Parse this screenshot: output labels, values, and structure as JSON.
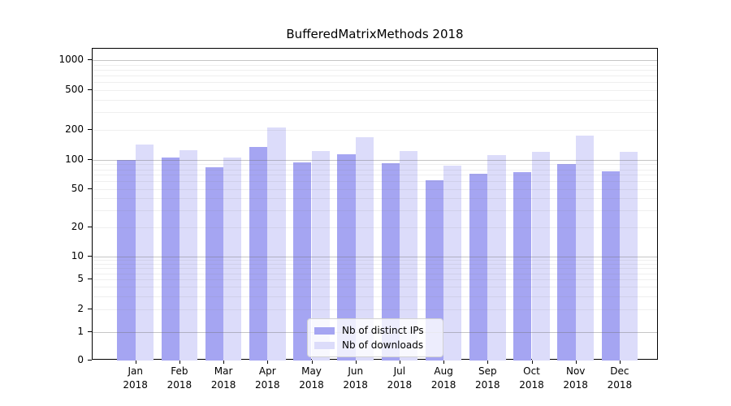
{
  "title": "BufferedMatrixMethods 2018",
  "chart_data": {
    "type": "bar",
    "title": "BufferedMatrixMethods 2018",
    "categories": [
      "Jan",
      "Feb",
      "Mar",
      "Apr",
      "May",
      "Jun",
      "Jul",
      "Aug",
      "Sep",
      "Oct",
      "Nov",
      "Dec"
    ],
    "category_year": "2018",
    "series": [
      {
        "name": "Nb of distinct IPs",
        "color": "#a5a5f2",
        "values": [
          100,
          105,
          84,
          135,
          95,
          115,
          93,
          62,
          72,
          75,
          91,
          76
        ]
      },
      {
        "name": "Nb of downloads",
        "color": "#dcdcfa",
        "values": [
          144,
          126,
          105,
          210,
          122,
          168,
          122,
          88,
          112,
          120,
          174,
          120
        ]
      }
    ],
    "xlabel": "",
    "ylabel": "",
    "yscale": "log (with 0 baseline)",
    "yticks": [
      0,
      1,
      2,
      5,
      10,
      20,
      50,
      100,
      200,
      500,
      1000
    ],
    "ylim": [
      0,
      1300
    ],
    "grid": "horizontal, major and minor",
    "legend_position": "lower center"
  },
  "colors": {
    "bar_distinct_ips": "#a5a5f2",
    "bar_downloads": "#dcdcfa",
    "major_grid": "#b5b5b5",
    "minor_grid": "#e8e8e8",
    "axis_frame": "#000000"
  }
}
